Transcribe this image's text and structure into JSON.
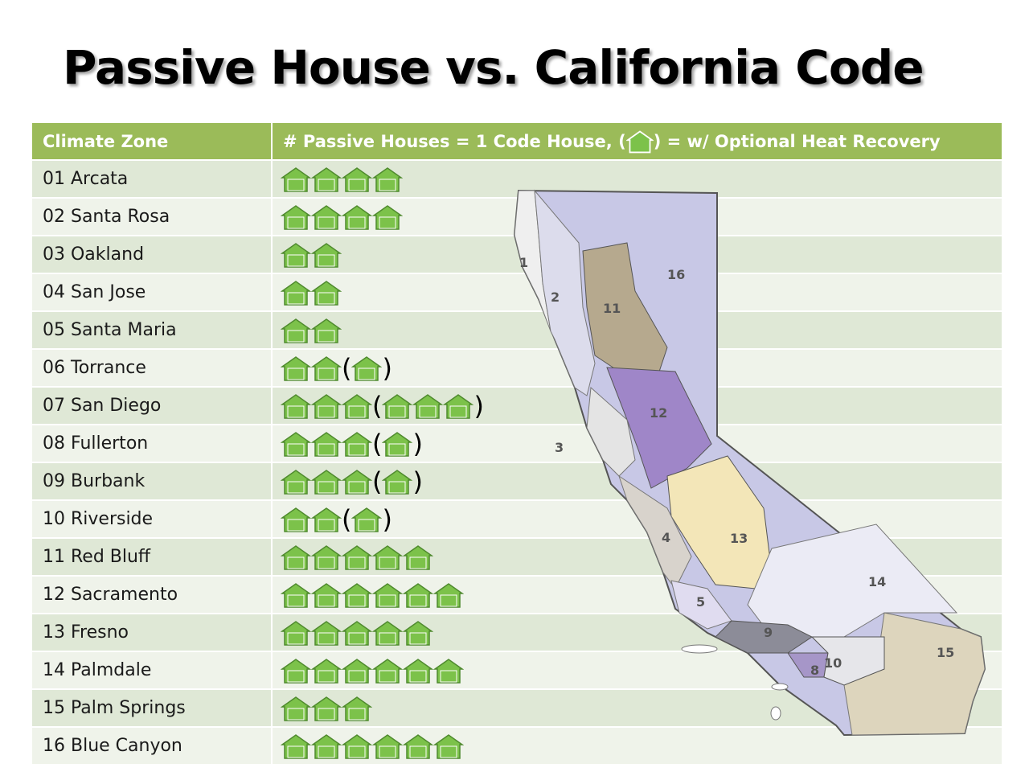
{
  "title": "Passive House vs. California Code",
  "table": {
    "header_zone": "Climate Zone",
    "header_houses_prefix": "# Passive Houses = 1 Code House,  (",
    "header_houses_suffix": ") = w/ Optional Heat Recovery"
  },
  "colors": {
    "header_bg": "#9bbb59",
    "row_odd": "#dfe8d6",
    "row_even": "#eff3ea",
    "house_fill": "#7cc24a"
  },
  "icons": {
    "house": "house-icon"
  },
  "zones": [
    {
      "name": "01 Arcata",
      "houses": 4,
      "optional": 0
    },
    {
      "name": "02 Santa Rosa",
      "houses": 4,
      "optional": 0
    },
    {
      "name": "03 Oakland",
      "houses": 2,
      "optional": 0
    },
    {
      "name": "04 San Jose",
      "houses": 2,
      "optional": 0
    },
    {
      "name": "05 Santa Maria",
      "houses": 2,
      "optional": 0
    },
    {
      "name": "06 Torrance",
      "houses": 2,
      "optional": 1
    },
    {
      "name": "07 San Diego",
      "houses": 3,
      "optional": 3
    },
    {
      "name": "08 Fullerton",
      "houses": 3,
      "optional": 1
    },
    {
      "name": "09 Burbank",
      "houses": 3,
      "optional": 1
    },
    {
      "name": "10 Riverside",
      "houses": 2,
      "optional": 1
    },
    {
      "name": "11 Red Bluff",
      "houses": 5,
      "optional": 0
    },
    {
      "name": "12 Sacramento",
      "houses": 6,
      "optional": 0
    },
    {
      "name": "13 Fresno",
      "houses": 5,
      "optional": 0
    },
    {
      "name": "14 Palmdale",
      "houses": 6,
      "optional": 0
    },
    {
      "name": "15 Palm Springs",
      "houses": 3,
      "optional": 0
    },
    {
      "name": "16 Blue Canyon",
      "houses": 6,
      "optional": 0
    }
  ],
  "map": {
    "zone_labels": [
      "1",
      "2",
      "3",
      "4",
      "5",
      "8",
      "9",
      "10",
      "11",
      "12",
      "13",
      "14",
      "15",
      "16"
    ]
  }
}
